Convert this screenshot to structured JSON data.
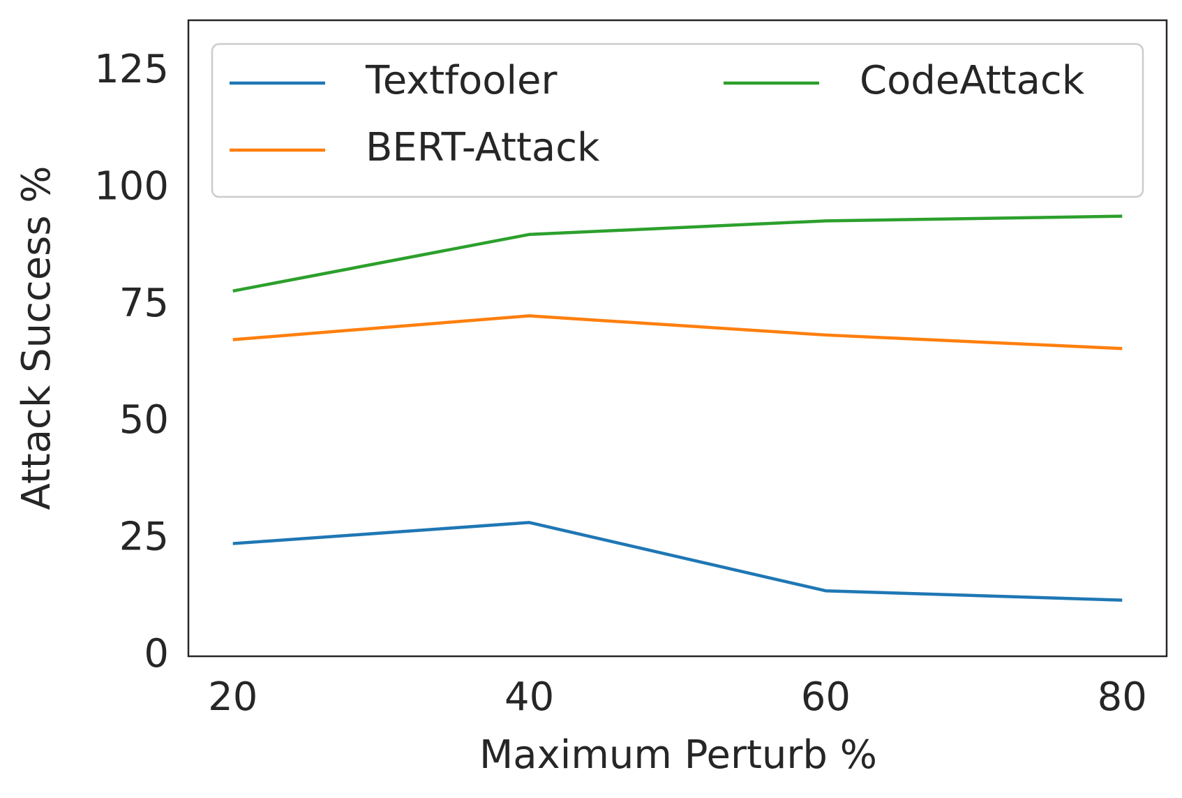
{
  "chart_data": {
    "type": "line",
    "x_label": "Maximum Perturb %",
    "y_label": "Attack Success %",
    "x": [
      20,
      40,
      60,
      80
    ],
    "series": [
      {
        "name": "Textfooler",
        "color": "#1f77b4",
        "values": [
          24.1,
          28.6,
          14.0,
          12.0
        ]
      },
      {
        "name": "BERT-Attack",
        "color": "#ff7f0e",
        "values": [
          67.7,
          72.8,
          68.7,
          65.8
        ]
      },
      {
        "name": "CodeAttack",
        "color": "#2ca02c",
        "values": [
          78.1,
          90.2,
          93.1,
          94.1
        ]
      }
    ],
    "xlim": [
      17,
      83
    ],
    "ylim": [
      0,
      136
    ],
    "xticks": [
      20,
      40,
      60,
      80
    ],
    "yticks": [
      0,
      25,
      50,
      75,
      100,
      125
    ],
    "grid": false,
    "legend": {
      "loc": "upper right",
      "ncol": 2
    }
  }
}
